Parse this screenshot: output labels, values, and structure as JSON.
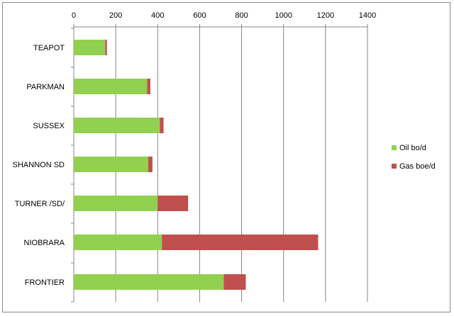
{
  "chart_data": {
    "type": "bar",
    "orientation": "horizontal",
    "stacked": true,
    "categories": [
      "TEAPOT",
      "PARKMAN",
      "SUSSEX",
      "SHANNON SD",
      "TURNER /SD/",
      "NIOBRARA",
      "FRONTIER"
    ],
    "series": [
      {
        "name": "Oil bo/d",
        "color": "#92d050",
        "values": [
          150,
          350,
          410,
          355,
          400,
          420,
          715
        ]
      },
      {
        "name": "Gas boe/d",
        "color": "#c0504d",
        "values": [
          8,
          15,
          18,
          20,
          145,
          745,
          105
        ]
      }
    ],
    "xlim": [
      0,
      1400
    ],
    "xticks": [
      0,
      200,
      400,
      600,
      800,
      1000,
      1200,
      1400
    ],
    "x_axis_position": "top",
    "grid": true,
    "legend_position": "right"
  }
}
